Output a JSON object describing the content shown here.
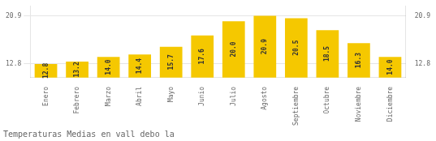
{
  "chart_data": {
    "type": "bar",
    "title": "Temperaturas Medias en vall debo la",
    "categories": [
      "Enero",
      "Febrero",
      "Marzo",
      "Abril",
      "Mayo",
      "Junio",
      "Julio",
      "Agosto",
      "Septiembre",
      "Octubre",
      "Noviembre",
      "Diciembre"
    ],
    "values": [
      12.8,
      13.2,
      14.0,
      14.4,
      15.7,
      17.6,
      20.0,
      20.9,
      20.5,
      18.5,
      16.3,
      14.0
    ],
    "value_labels": [
      "12.8",
      "13.2",
      "14.0",
      "14.4",
      "15.7",
      "17.6",
      "20.0",
      "20.9",
      "20.5",
      "18.5",
      "16.3",
      "14.0"
    ],
    "color": "#F5C800",
    "ylim": [
      10.5,
      22.5
    ],
    "yticks": [
      12.8,
      20.9
    ],
    "y2lim": [
      10.5,
      22.5
    ],
    "y2ticks": [
      12.8,
      20.9
    ],
    "grid": true,
    "data_labels": true
  }
}
